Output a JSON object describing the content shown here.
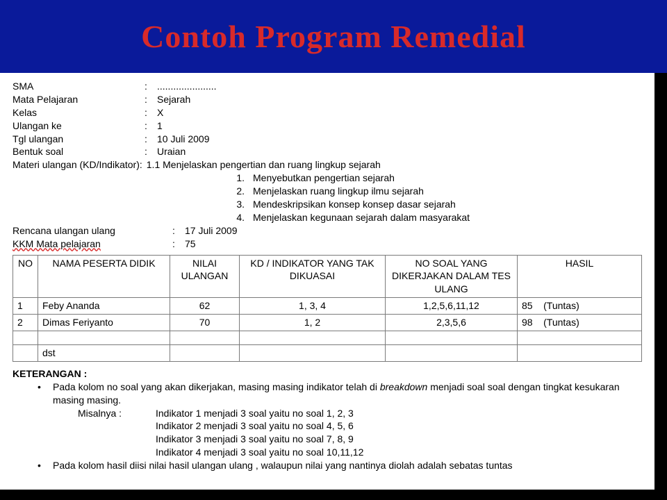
{
  "header": {
    "title": "Contoh Program Remedial"
  },
  "info": {
    "rows": [
      {
        "label": "SMA",
        "value": "......................"
      },
      {
        "label": "Mata Pelajaran",
        "value": "Sejarah"
      },
      {
        "label": "Kelas",
        "value": "X"
      },
      {
        "label": "Ulangan ke",
        "value": "1"
      },
      {
        "label": "Tgl ulangan",
        "value": "10 Juli 2009"
      },
      {
        "label": "Bentuk soal",
        "value": "Uraian"
      }
    ],
    "materi_label": "Materi ulangan (KD/Indikator):",
    "materi_head": "1.1 Menjelaskan pengertian dan ruang lingkup sejarah",
    "materi_items": [
      "Menyebutkan  pengertian sejarah",
      "Menjelaskan ruang lingkup ilmu sejarah",
      "Mendeskripsikan konsep konsep dasar sejarah",
      "Menjelaskan kegunaan sejarah dalam masyarakat"
    ],
    "rows2": [
      {
        "label": "Rencana ulangan ulang",
        "value": "17 Juli 2009"
      },
      {
        "label": "KKM Mata pelajaran",
        "value": "75"
      }
    ]
  },
  "table": {
    "headers": {
      "no": "NO",
      "nama": "NAMA PESERTA DIDIK",
      "nilai": "NILAI ULANGAN",
      "kd": "KD / INDIKATOR YANG TAK DIKUASAI",
      "soal": "NO SOAL YANG DIKERJAKAN DALAM TES ULANG",
      "hasil": "HASIL"
    },
    "rows": [
      {
        "no": "1",
        "nama": "Feby Ananda",
        "nilai": "62",
        "kd": "1, 3, 4",
        "soal": "1,2,5,6,11,12",
        "hasil": "85    (Tuntas)"
      },
      {
        "no": "2",
        "nama": "Dimas Feriyanto",
        "nilai": "70",
        "kd": "1, 2",
        "soal": "2,3,5,6",
        "hasil": "98    (Tuntas)"
      }
    ],
    "dst": "dst"
  },
  "keterangan": {
    "title": "KETERANGAN :",
    "bullets": [
      {
        "text_pre": "Pada kolom no soal yang akan dikerjakan,   masing masing indikator telah di ",
        "italic_word": "breakdown",
        "text_post": " menjadi soal soal dengan tingkat kesukaran masing masing.",
        "misal_label": "Misalnya   :",
        "misal_first": "Indikator 1 menjadi 3 soal yaitu no soal 1, 2, 3",
        "inds": [
          "Indikator  2 menjadi 3 soal yaitu no soal 4, 5, 6",
          "Indikator  3 menjadi 3 soal yaitu no soal 7, 8, 9",
          "Indikator  4 menjadi 3 soal yaitu no soal 10,11,12"
        ]
      },
      {
        "text_pre": "Pada kolom hasil diisi nilai hasil ulangan ulang ,  walaupun nilai yang nantinya diolah adalah sebatas tuntas",
        "italic_word": "",
        "text_post": ""
      }
    ]
  },
  "colors": {
    "title_bg": "#0a1a9a",
    "title_fg": "#d82a2a",
    "page_bg": "#000000",
    "doc_bg": "#ffffff",
    "border": "#7a7a7a"
  }
}
